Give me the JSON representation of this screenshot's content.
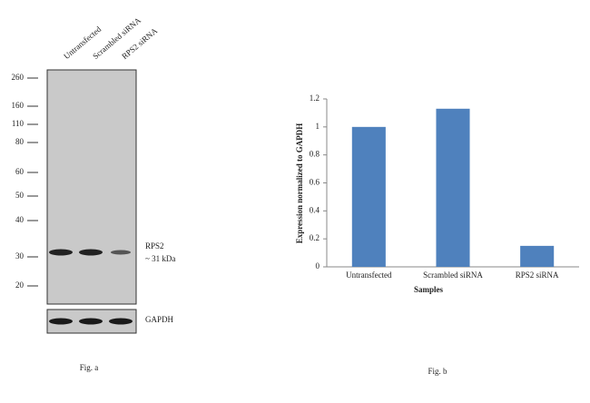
{
  "figure_a": {
    "lanes": [
      "Untransfected",
      "Scrambled siRNA",
      "RPS2 siRNA"
    ],
    "markers": [
      260,
      160,
      110,
      80,
      60,
      50,
      40,
      30,
      20
    ],
    "band_label": "RPS2",
    "band_size": "~ 31 kDa",
    "control_label": "GAPDH",
    "caption": "Fig. a"
  },
  "chart_data": {
    "type": "bar",
    "categories": [
      "Untransfected",
      "Scrambled siRNA",
      "RPS2 siRNA"
    ],
    "values": [
      1,
      1.13,
      0.15
    ],
    "color": "#4f81bd",
    "ylim": [
      0,
      1.2
    ],
    "yticks": [
      0,
      0.2,
      0.4,
      0.6,
      0.8,
      1,
      1.2
    ],
    "ylabel": "Expression  normalized to GAPDH",
    "xlabel": "Samples",
    "grid": false,
    "caption": "Fig. b"
  }
}
